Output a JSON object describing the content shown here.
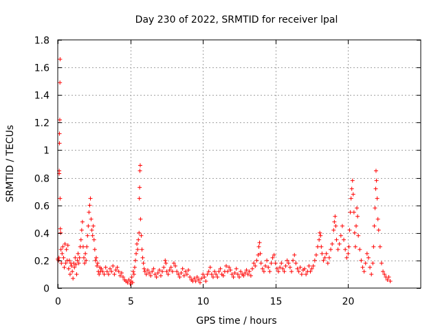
{
  "chart_data": {
    "type": "scatter",
    "title": "Day 230 of 2022, SRMTID for receiver lpal",
    "xlabel": "GPS time / hours",
    "ylabel": "SRMTID / TECUs",
    "xlim": [
      0,
      25
    ],
    "ylim": [
      0,
      1.8
    ],
    "xticks": [
      0,
      5,
      10,
      15,
      20
    ],
    "xtick_labels": [
      "0",
      "5",
      "10",
      "15",
      "20"
    ],
    "yticks": [
      0,
      0.2,
      0.4,
      0.6,
      0.8,
      1,
      1.2,
      1.4,
      1.6,
      1.8
    ],
    "ytick_labels": [
      "0",
      "0.2",
      "0.4",
      "0.6",
      "0.8",
      "1",
      "1.2",
      "1.4",
      "1.6",
      "1.8"
    ],
    "grid": true,
    "marker": "+",
    "color": "#ff0000",
    "series": [
      {
        "name": "SRMTID",
        "points": [
          [
            0.0,
            0.21
          ],
          [
            0.05,
            0.2
          ],
          [
            0.08,
            0.22
          ],
          [
            0.1,
            0.85
          ],
          [
            0.1,
            0.83
          ],
          [
            0.12,
            1.05
          ],
          [
            0.12,
            1.12
          ],
          [
            0.14,
            1.22
          ],
          [
            0.15,
            1.49
          ],
          [
            0.16,
            1.66
          ],
          [
            0.16,
            0.65
          ],
          [
            0.18,
            0.43
          ],
          [
            0.2,
            0.4
          ],
          [
            0.22,
            0.28
          ],
          [
            0.25,
            0.18
          ],
          [
            0.3,
            0.25
          ],
          [
            0.35,
            0.3
          ],
          [
            0.4,
            0.22
          ],
          [
            0.45,
            0.15
          ],
          [
            0.5,
            0.32
          ],
          [
            0.55,
            0.18
          ],
          [
            0.6,
            0.28
          ],
          [
            0.65,
            0.2
          ],
          [
            0.7,
            0.31
          ],
          [
            0.75,
            0.14
          ],
          [
            0.8,
            0.2
          ],
          [
            0.85,
            0.1
          ],
          [
            0.9,
            0.18
          ],
          [
            0.95,
            0.16
          ],
          [
            1.0,
            0.12
          ],
          [
            1.05,
            0.07
          ],
          [
            1.1,
            0.18
          ],
          [
            1.15,
            0.15
          ],
          [
            1.2,
            0.22
          ],
          [
            1.25,
            0.17
          ],
          [
            1.3,
            0.1
          ],
          [
            1.35,
            0.2
          ],
          [
            1.4,
            0.25
          ],
          [
            1.45,
            0.18
          ],
          [
            1.5,
            0.22
          ],
          [
            1.55,
            0.3
          ],
          [
            1.6,
            0.35
          ],
          [
            1.65,
            0.42
          ],
          [
            1.7,
            0.48
          ],
          [
            1.75,
            0.3
          ],
          [
            1.8,
            0.22
          ],
          [
            1.85,
            0.18
          ],
          [
            1.9,
            0.25
          ],
          [
            1.95,
            0.2
          ],
          [
            2.0,
            0.3
          ],
          [
            2.05,
            0.38
          ],
          [
            2.1,
            0.45
          ],
          [
            2.15,
            0.55
          ],
          [
            2.2,
            0.6
          ],
          [
            2.25,
            0.65
          ],
          [
            2.3,
            0.5
          ],
          [
            2.35,
            0.42
          ],
          [
            2.4,
            0.38
          ],
          [
            2.45,
            0.45
          ],
          [
            2.5,
            0.35
          ],
          [
            2.55,
            0.28
          ],
          [
            2.6,
            0.2
          ],
          [
            2.65,
            0.22
          ],
          [
            2.7,
            0.16
          ],
          [
            2.75,
            0.18
          ],
          [
            2.8,
            0.12
          ],
          [
            2.85,
            0.1
          ],
          [
            2.9,
            0.15
          ],
          [
            2.95,
            0.12
          ],
          [
            3.0,
            0.14
          ],
          [
            3.1,
            0.12
          ],
          [
            3.2,
            0.1
          ],
          [
            3.3,
            0.15
          ],
          [
            3.4,
            0.12
          ],
          [
            3.5,
            0.1
          ],
          [
            3.6,
            0.14
          ],
          [
            3.7,
            0.12
          ],
          [
            3.8,
            0.16
          ],
          [
            3.9,
            0.1
          ],
          [
            4.0,
            0.13
          ],
          [
            4.1,
            0.15
          ],
          [
            4.2,
            0.12
          ],
          [
            4.3,
            0.09
          ],
          [
            4.4,
            0.11
          ],
          [
            4.5,
            0.08
          ],
          [
            4.6,
            0.06
          ],
          [
            4.7,
            0.05
          ],
          [
            4.8,
            0.04
          ],
          [
            4.9,
            0.06
          ],
          [
            5.0,
            0.03
          ],
          [
            5.05,
            0.05
          ],
          [
            5.1,
            0.08
          ],
          [
            5.15,
            0.04
          ],
          [
            5.2,
            0.12
          ],
          [
            5.25,
            0.1
          ],
          [
            5.3,
            0.15
          ],
          [
            5.35,
            0.2
          ],
          [
            5.4,
            0.25
          ],
          [
            5.45,
            0.32
          ],
          [
            5.5,
            0.28
          ],
          [
            5.55,
            0.35
          ],
          [
            5.6,
            0.4
          ],
          [
            5.62,
            0.65
          ],
          [
            5.64,
            0.73
          ],
          [
            5.66,
            0.85
          ],
          [
            5.68,
            0.89
          ],
          [
            5.7,
            0.5
          ],
          [
            5.75,
            0.38
          ],
          [
            5.8,
            0.28
          ],
          [
            5.85,
            0.22
          ],
          [
            5.9,
            0.18
          ],
          [
            5.95,
            0.14
          ],
          [
            6.0,
            0.12
          ],
          [
            6.1,
            0.1
          ],
          [
            6.2,
            0.13
          ],
          [
            6.3,
            0.11
          ],
          [
            6.4,
            0.09
          ],
          [
            6.5,
            0.12
          ],
          [
            6.6,
            0.14
          ],
          [
            6.7,
            0.1
          ],
          [
            6.8,
            0.08
          ],
          [
            6.9,
            0.11
          ],
          [
            7.0,
            0.13
          ],
          [
            7.1,
            0.09
          ],
          [
            7.2,
            0.12
          ],
          [
            7.3,
            0.15
          ],
          [
            7.4,
            0.2
          ],
          [
            7.45,
            0.18
          ],
          [
            7.5,
            0.12
          ],
          [
            7.6,
            0.1
          ],
          [
            7.7,
            0.13
          ],
          [
            7.8,
            0.15
          ],
          [
            7.9,
            0.12
          ],
          [
            8.0,
            0.18
          ],
          [
            8.1,
            0.16
          ],
          [
            8.2,
            0.12
          ],
          [
            8.3,
            0.1
          ],
          [
            8.4,
            0.08
          ],
          [
            8.5,
            0.11
          ],
          [
            8.6,
            0.14
          ],
          [
            8.7,
            0.09
          ],
          [
            8.8,
            0.12
          ],
          [
            8.9,
            0.1
          ],
          [
            9.0,
            0.13
          ],
          [
            9.1,
            0.08
          ],
          [
            9.2,
            0.06
          ],
          [
            9.3,
            0.05
          ],
          [
            9.4,
            0.07
          ],
          [
            9.5,
            0.05
          ],
          [
            9.6,
            0.08
          ],
          [
            9.7,
            0.06
          ],
          [
            9.8,
            0.04
          ],
          [
            9.9,
            0.07
          ],
          [
            10.0,
            0.1
          ],
          [
            10.1,
            0.08
          ],
          [
            10.2,
            0.05
          ],
          [
            10.3,
            0.1
          ],
          [
            10.4,
            0.12
          ],
          [
            10.5,
            0.15
          ],
          [
            10.6,
            0.1
          ],
          [
            10.7,
            0.08
          ],
          [
            10.8,
            0.12
          ],
          [
            10.9,
            0.1
          ],
          [
            11.0,
            0.08
          ],
          [
            11.1,
            0.12
          ],
          [
            11.2,
            0.14
          ],
          [
            11.3,
            0.1
          ],
          [
            11.4,
            0.09
          ],
          [
            11.5,
            0.12
          ],
          [
            11.6,
            0.16
          ],
          [
            11.7,
            0.12
          ],
          [
            11.8,
            0.15
          ],
          [
            11.9,
            0.13
          ],
          [
            12.0,
            0.1
          ],
          [
            12.1,
            0.08
          ],
          [
            12.2,
            0.11
          ],
          [
            12.3,
            0.14
          ],
          [
            12.4,
            0.1
          ],
          [
            12.5,
            0.08
          ],
          [
            12.6,
            0.12
          ],
          [
            12.7,
            0.1
          ],
          [
            12.8,
            0.09
          ],
          [
            12.9,
            0.11
          ],
          [
            13.0,
            0.13
          ],
          [
            13.1,
            0.1
          ],
          [
            13.2,
            0.12
          ],
          [
            13.3,
            0.09
          ],
          [
            13.4,
            0.14
          ],
          [
            13.5,
            0.18
          ],
          [
            13.6,
            0.16
          ],
          [
            13.7,
            0.2
          ],
          [
            13.8,
            0.24
          ],
          [
            13.85,
            0.3
          ],
          [
            13.9,
            0.33
          ],
          [
            13.95,
            0.25
          ],
          [
            14.0,
            0.18
          ],
          [
            14.1,
            0.14
          ],
          [
            14.2,
            0.12
          ],
          [
            14.3,
            0.16
          ],
          [
            14.4,
            0.2
          ],
          [
            14.5,
            0.15
          ],
          [
            14.6,
            0.12
          ],
          [
            14.7,
            0.18
          ],
          [
            14.8,
            0.22
          ],
          [
            14.9,
            0.24
          ],
          [
            15.0,
            0.18
          ],
          [
            15.1,
            0.14
          ],
          [
            15.2,
            0.12
          ],
          [
            15.3,
            0.15
          ],
          [
            15.4,
            0.18
          ],
          [
            15.5,
            0.14
          ],
          [
            15.6,
            0.12
          ],
          [
            15.7,
            0.16
          ],
          [
            15.8,
            0.2
          ],
          [
            15.9,
            0.18
          ],
          [
            16.0,
            0.15
          ],
          [
            16.1,
            0.12
          ],
          [
            16.2,
            0.2
          ],
          [
            16.3,
            0.24
          ],
          [
            16.4,
            0.18
          ],
          [
            16.5,
            0.14
          ],
          [
            16.6,
            0.12
          ],
          [
            16.7,
            0.15
          ],
          [
            16.8,
            0.1
          ],
          [
            16.9,
            0.13
          ],
          [
            17.0,
            0.14
          ],
          [
            17.1,
            0.1
          ],
          [
            17.2,
            0.12
          ],
          [
            17.3,
            0.16
          ],
          [
            17.4,
            0.12
          ],
          [
            17.5,
            0.14
          ],
          [
            17.6,
            0.16
          ],
          [
            17.7,
            0.2
          ],
          [
            17.8,
            0.24
          ],
          [
            17.9,
            0.3
          ],
          [
            18.0,
            0.35
          ],
          [
            18.05,
            0.4
          ],
          [
            18.1,
            0.38
          ],
          [
            18.15,
            0.3
          ],
          [
            18.2,
            0.25
          ],
          [
            18.3,
            0.2
          ],
          [
            18.4,
            0.22
          ],
          [
            18.5,
            0.25
          ],
          [
            18.6,
            0.18
          ],
          [
            18.7,
            0.22
          ],
          [
            18.8,
            0.28
          ],
          [
            18.9,
            0.32
          ],
          [
            19.0,
            0.42
          ],
          [
            19.05,
            0.48
          ],
          [
            19.1,
            0.52
          ],
          [
            19.15,
            0.45
          ],
          [
            19.2,
            0.35
          ],
          [
            19.3,
            0.28
          ],
          [
            19.4,
            0.32
          ],
          [
            19.5,
            0.38
          ],
          [
            19.6,
            0.45
          ],
          [
            19.7,
            0.35
          ],
          [
            19.8,
            0.28
          ],
          [
            19.9,
            0.22
          ],
          [
            20.0,
            0.25
          ],
          [
            20.05,
            0.3
          ],
          [
            20.1,
            0.42
          ],
          [
            20.15,
            0.55
          ],
          [
            20.2,
            0.65
          ],
          [
            20.25,
            0.72
          ],
          [
            20.3,
            0.78
          ],
          [
            20.35,
            0.68
          ],
          [
            20.4,
            0.55
          ],
          [
            20.45,
            0.4
          ],
          [
            20.5,
            0.3
          ],
          [
            20.55,
            0.45
          ],
          [
            20.6,
            0.58
          ],
          [
            20.65,
            0.52
          ],
          [
            20.7,
            0.38
          ],
          [
            20.8,
            0.28
          ],
          [
            20.9,
            0.2
          ],
          [
            21.0,
            0.15
          ],
          [
            21.1,
            0.12
          ],
          [
            21.2,
            0.18
          ],
          [
            21.3,
            0.25
          ],
          [
            21.4,
            0.22
          ],
          [
            21.5,
            0.15
          ],
          [
            21.6,
            0.1
          ],
          [
            21.7,
            0.18
          ],
          [
            21.75,
            0.3
          ],
          [
            21.8,
            0.45
          ],
          [
            21.85,
            0.58
          ],
          [
            21.9,
            0.72
          ],
          [
            21.92,
            0.85
          ],
          [
            21.95,
            0.78
          ],
          [
            22.0,
            0.65
          ],
          [
            22.05,
            0.5
          ],
          [
            22.1,
            0.42
          ],
          [
            22.2,
            0.3
          ],
          [
            22.3,
            0.18
          ],
          [
            22.4,
            0.12
          ],
          [
            22.5,
            0.1
          ],
          [
            22.6,
            0.08
          ],
          [
            22.7,
            0.06
          ],
          [
            22.8,
            0.08
          ],
          [
            22.9,
            0.05
          ]
        ]
      }
    ]
  }
}
